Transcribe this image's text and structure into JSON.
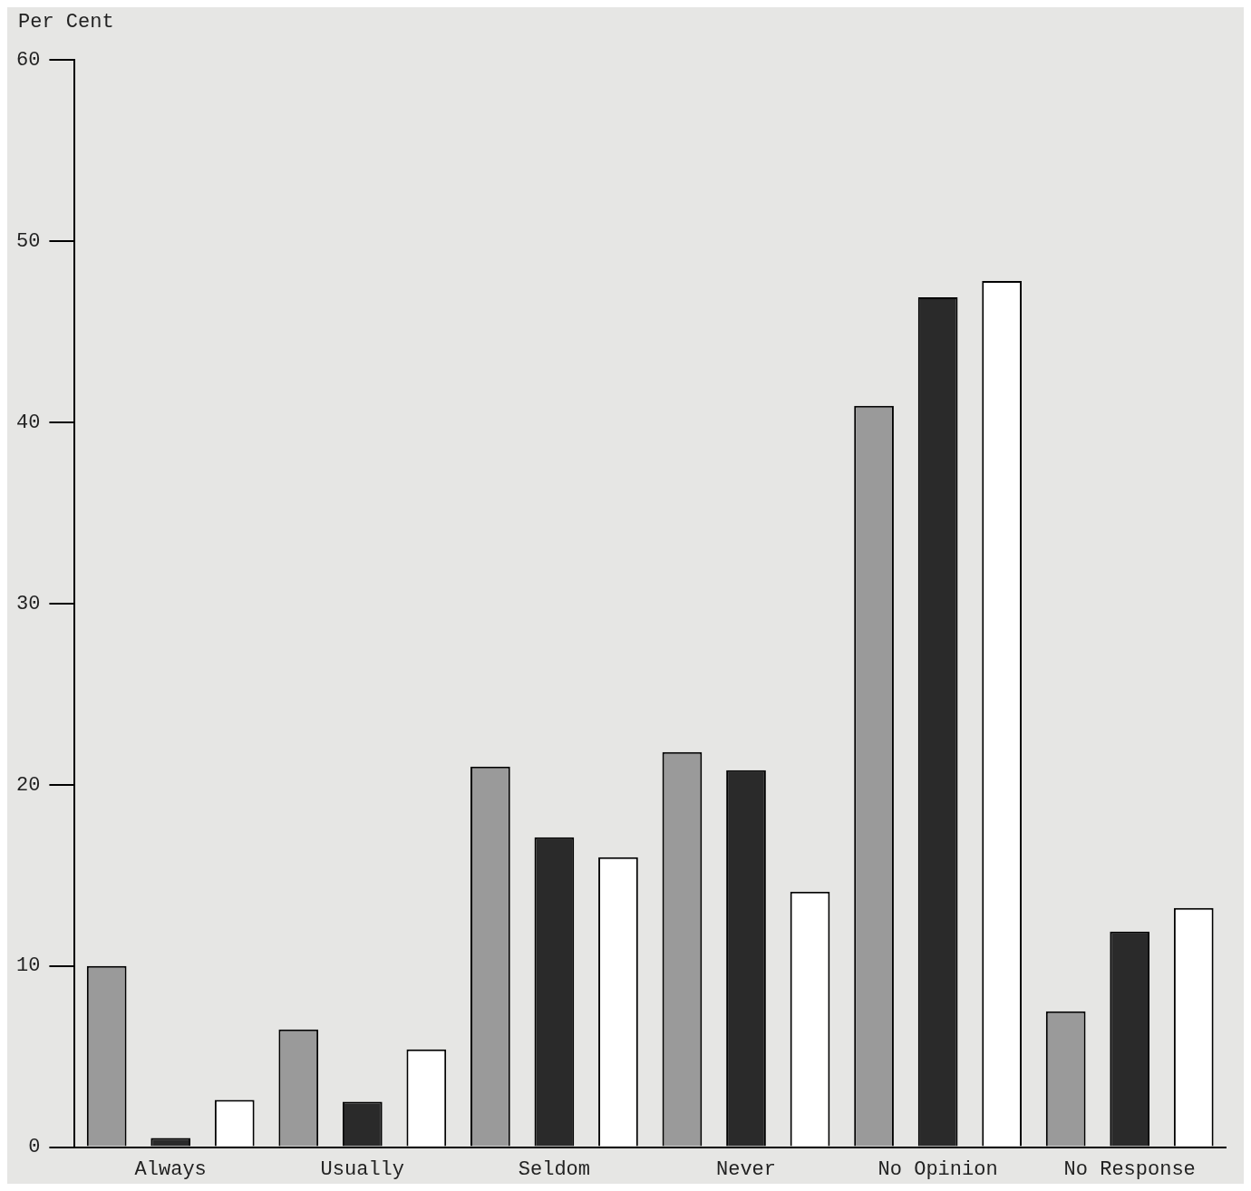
{
  "chart_data": {
    "type": "bar",
    "ylabel": "Per Cent",
    "categories": [
      "Always",
      "Usually",
      "Seldom",
      "Never",
      "No Opinion",
      "No Response"
    ],
    "series": [
      {
        "color": "#9a9a9a",
        "values": [
          10,
          6.5,
          21,
          21.8,
          40.9,
          7.5
        ]
      },
      {
        "color": "#2a2a2a",
        "values": [
          0.5,
          2.5,
          17.1,
          20.8,
          46.9,
          11.9
        ]
      },
      {
        "color": "#ffffff",
        "values": [
          2.6,
          5.4,
          16,
          14.1,
          47.8,
          13.2
        ]
      }
    ],
    "ylim": [
      0,
      60
    ],
    "yticks": [
      0,
      10,
      20,
      30,
      40,
      50,
      60
    ],
    "grid": false,
    "legend": false
  }
}
